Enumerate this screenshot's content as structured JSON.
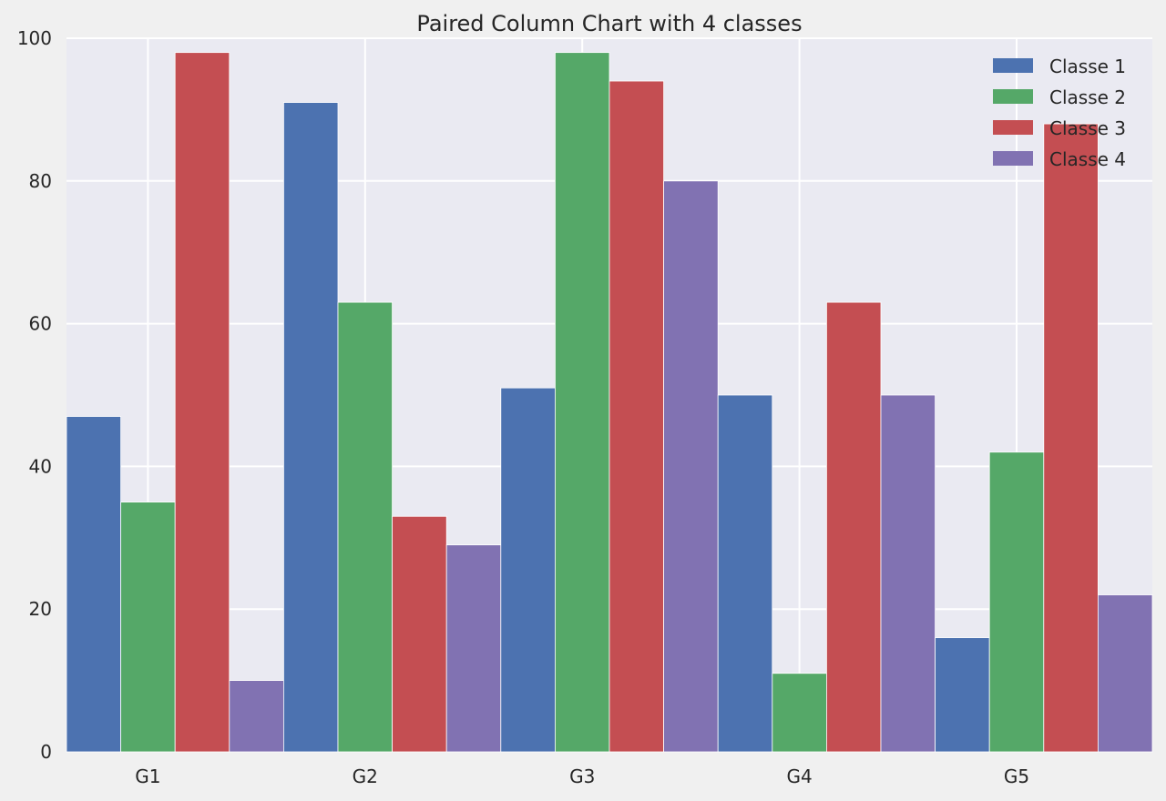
{
  "chart_data": {
    "type": "bar",
    "title": "Paired Column Chart with 4 classes",
    "xlabel": "",
    "ylabel": "",
    "categories": [
      "G1",
      "G2",
      "G3",
      "G4",
      "G5"
    ],
    "series": [
      {
        "name": "Classe 1",
        "color": "#4c72b0",
        "values": [
          47,
          91,
          51,
          50,
          16
        ]
      },
      {
        "name": "Classe 2",
        "color": "#55a868",
        "values": [
          35,
          63,
          98,
          11,
          42
        ]
      },
      {
        "name": "Classe 3",
        "color": "#c44e52",
        "values": [
          98,
          33,
          94,
          63,
          88
        ]
      },
      {
        "name": "Classe 4",
        "color": "#8172b2",
        "values": [
          10,
          29,
          80,
          50,
          22
        ]
      }
    ],
    "ylim": [
      0,
      100
    ],
    "yticks": [
      0,
      20,
      40,
      60,
      80,
      100
    ],
    "grid": true,
    "legend_position": "top-right",
    "plot_background": "#eaeaf2",
    "figure_background": "#f0f0f0"
  }
}
